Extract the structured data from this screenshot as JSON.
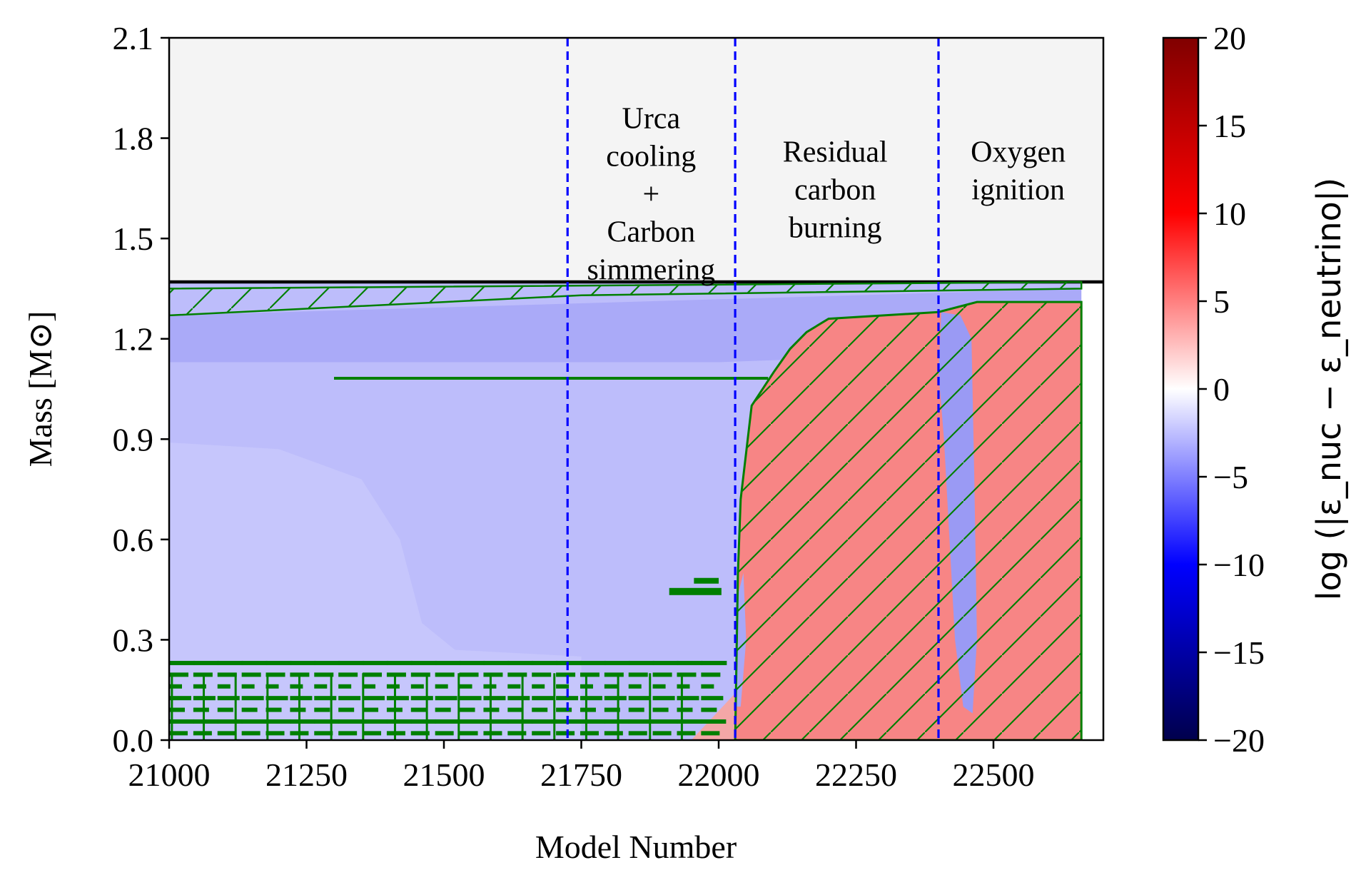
{
  "chart_data": {
    "type": "heatmap",
    "xlabel": "Model Number",
    "ylabel": "Mass [M⊙]",
    "xlim": [
      21000,
      22700
    ],
    "ylim": [
      0.0,
      2.1
    ],
    "xticks": [
      21000,
      21250,
      21500,
      21750,
      22000,
      22250,
      22500
    ],
    "xtick_labels": [
      "21000",
      "21250",
      "21500",
      "21750",
      "22000",
      "22250",
      "22500"
    ],
    "yticks": [
      0.0,
      0.3,
      0.6,
      0.9,
      1.2,
      1.5,
      1.8,
      2.1
    ],
    "ytick_labels": [
      "0.0",
      "0.3",
      "0.6",
      "0.9",
      "1.2",
      "1.5",
      "1.8",
      "2.1"
    ],
    "colorbar": {
      "label": "log (|ε_nuc − ε_neutrino|)",
      "range": [
        -20,
        20
      ],
      "ticks": [
        -20,
        -15,
        -10,
        -5,
        0,
        5,
        10,
        15,
        20
      ],
      "tick_labels": [
        "−20",
        "−15",
        "−10",
        "−5",
        "0",
        "5",
        "10",
        "15",
        "20"
      ],
      "colormap": "seismic",
      "low_color": "#00004c",
      "mid_color": "#ffffff",
      "high_color": "#800000"
    },
    "star_surface_mass": {
      "x": [
        21000,
        22700
      ],
      "y": [
        1.37,
        1.37
      ]
    },
    "vertical_lines": {
      "color": "#0000ff",
      "style": "dashed",
      "x": [
        21725,
        22030,
        22400
      ]
    },
    "annotations": [
      {
        "lines": [
          "Urca",
          "cooling",
          "+",
          "Carbon",
          "simmering"
        ],
        "x": 21877,
        "y": 1.83
      },
      {
        "lines": [
          "Residual",
          "carbon",
          "burning"
        ],
        "x": 22212,
        "y": 1.73
      },
      {
        "lines": [
          "Oxygen",
          "ignition"
        ],
        "x": 22545,
        "y": 1.73
      }
    ],
    "convective_boundary": {
      "color": "#007f00",
      "envelope_hatch_top": [
        [
          21000,
          1.35
        ],
        [
          22660,
          1.37
        ]
      ],
      "envelope_hatch_bottom": [
        [
          21000,
          1.27
        ],
        [
          21750,
          1.33
        ],
        [
          22660,
          1.35
        ]
      ],
      "burning_zone": [
        [
          22030,
          0.0
        ],
        [
          22035,
          0.5
        ],
        [
          22040,
          0.72
        ],
        [
          22060,
          1.0
        ],
        [
          22100,
          1.1
        ],
        [
          22130,
          1.17
        ],
        [
          22160,
          1.22
        ],
        [
          22200,
          1.26
        ],
        [
          22400,
          1.28
        ],
        [
          22470,
          1.31
        ],
        [
          22660,
          1.31
        ],
        [
          22660,
          0.0
        ]
      ]
    }
  }
}
